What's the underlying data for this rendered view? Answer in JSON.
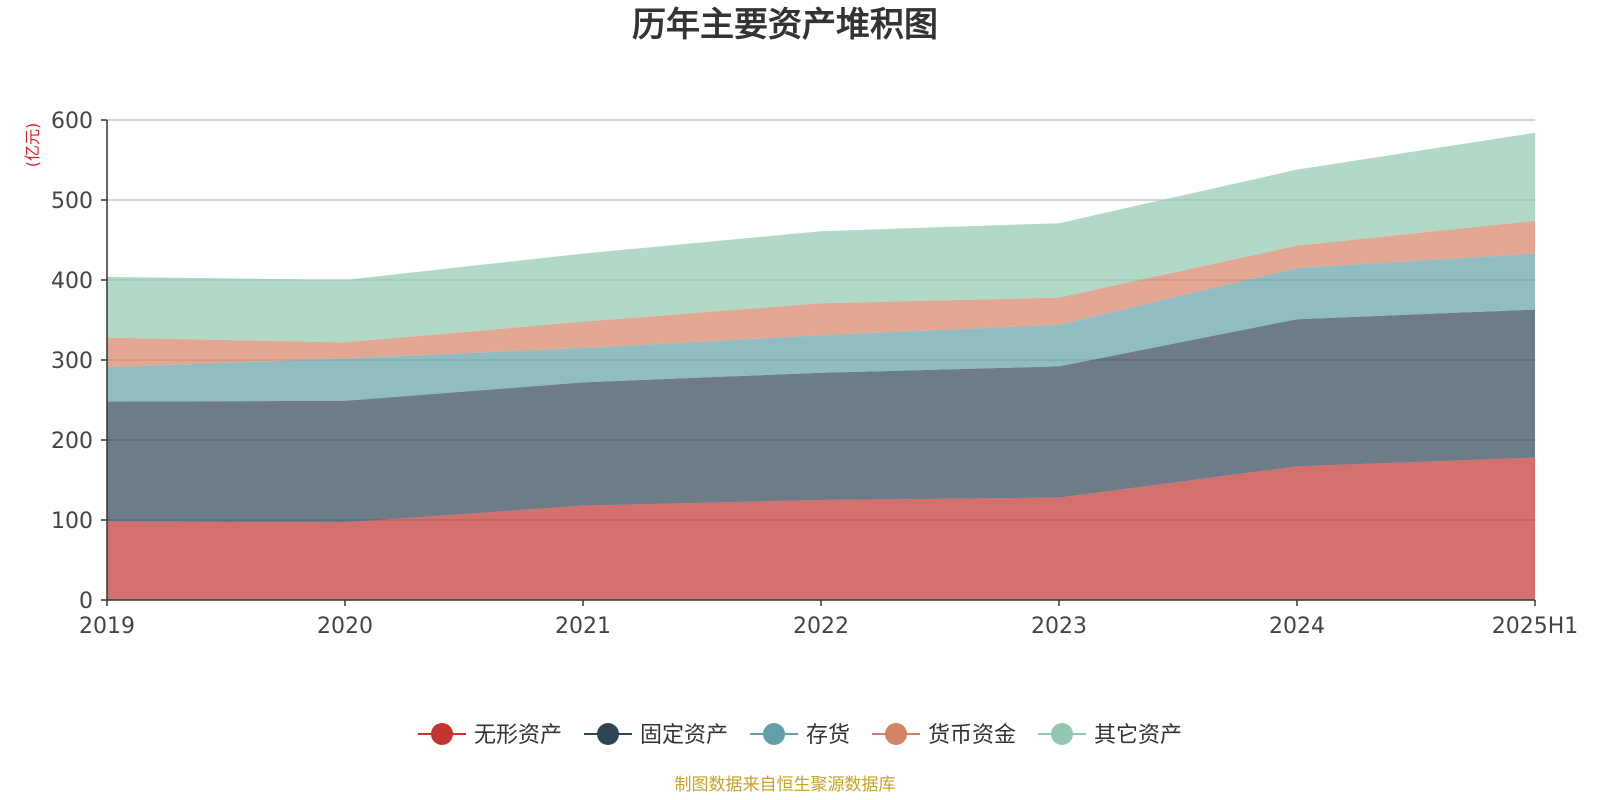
{
  "chart_data": {
    "type": "area",
    "stacked": true,
    "title": "历年主要资产堆积图",
    "unit_label": "(亿元)",
    "x": [
      "2019",
      "2020",
      "2021",
      "2022",
      "2023",
      "2024",
      "2025H1"
    ],
    "ylim": [
      0,
      600
    ],
    "yticks": [
      "0",
      "100",
      "200",
      "300",
      "400",
      "500",
      "600"
    ],
    "grid": true,
    "legend_position": "bottom",
    "series": [
      {
        "name": "无形资产",
        "color": "#c23531",
        "values": [
          98,
          97,
          118,
          125,
          128,
          167,
          178
        ]
      },
      {
        "name": "固定资产",
        "color": "#2f4554",
        "values": [
          150,
          152,
          154,
          159,
          164,
          184,
          185
        ]
      },
      {
        "name": "存货",
        "color": "#61a0a8",
        "values": [
          43,
          53,
          43,
          47,
          52,
          64,
          70
        ]
      },
      {
        "name": "货币资金",
        "color": "#d48265",
        "values": [
          37,
          20,
          33,
          40,
          34,
          28,
          41
        ]
      },
      {
        "name": "其它资产",
        "color": "#91c7ae",
        "values": [
          76,
          78,
          85,
          90,
          93,
          95,
          110
        ]
      }
    ],
    "source": "制图数据来自恒生聚源数据库"
  }
}
